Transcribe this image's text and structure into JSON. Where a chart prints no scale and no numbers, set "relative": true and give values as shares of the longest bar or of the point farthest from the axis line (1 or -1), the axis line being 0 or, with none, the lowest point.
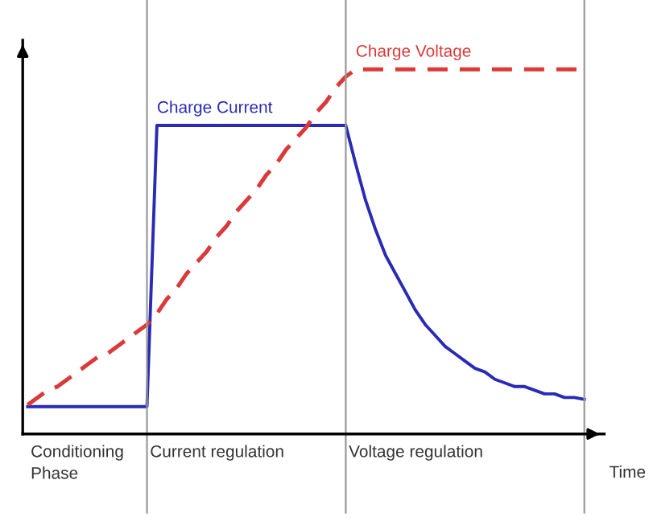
{
  "chart_data": {
    "type": "line",
    "relative": true,
    "xlabel": "Time",
    "categories": [
      null,
      null,
      null,
      null,
      null,
      null,
      null,
      null,
      null,
      null,
      null,
      null,
      null,
      null,
      null,
      null,
      null,
      null,
      null,
      null,
      null,
      null,
      null,
      null,
      null,
      null,
      null,
      null,
      null,
      null,
      null,
      null,
      null,
      null,
      null,
      null,
      null,
      null,
      null,
      null,
      null,
      null,
      null,
      null,
      null,
      null,
      null,
      null,
      null,
      null,
      null,
      null,
      null,
      null,
      null,
      null,
      null
    ],
    "series": [
      {
        "name": "Charge Current",
        "color": "#2a2ab5",
        "line_style": "solid",
        "values": [
          0.075,
          0.075,
          0.075,
          0.075,
          0.075,
          0.075,
          0.075,
          0.075,
          0.075,
          0.075,
          0.075,
          0.075,
          0.075,
          0.846,
          0.846,
          0.846,
          0.846,
          0.846,
          0.846,
          0.846,
          0.846,
          0.846,
          0.846,
          0.846,
          0.846,
          0.846,
          0.846,
          0.846,
          0.846,
          0.846,
          0.846,
          0.846,
          0.846,
          0.74,
          0.64,
          0.56,
          0.49,
          0.44,
          0.39,
          0.34,
          0.3,
          0.27,
          0.24,
          0.22,
          0.2,
          0.18,
          0.17,
          0.15,
          0.14,
          0.13,
          0.13,
          0.12,
          0.11,
          0.11,
          0.1,
          0.1,
          0.095
        ]
      },
      {
        "name": "Charge Voltage",
        "color": "#d93a3a",
        "line_style": "dashed",
        "values": [
          0.08,
          0.1,
          0.12,
          0.13,
          0.15,
          0.17,
          0.19,
          0.21,
          0.22,
          0.24,
          0.26,
          0.28,
          0.3,
          0.33,
          0.37,
          0.4,
          0.44,
          0.47,
          0.5,
          0.54,
          0.57,
          0.61,
          0.64,
          0.67,
          0.71,
          0.74,
          0.78,
          0.81,
          0.84,
          0.88,
          0.91,
          0.95,
          0.98,
          1,
          1,
          1,
          1,
          1,
          1,
          1,
          1,
          1,
          1,
          1,
          1,
          1,
          1,
          1,
          1,
          1,
          1,
          1,
          1,
          1,
          1,
          1,
          1
        ]
      }
    ],
    "annotations": [
      "Conditioning\nPhase",
      "Current regulation",
      "Voltage regulation"
    ],
    "grid": "x",
    "marker": "none"
  }
}
